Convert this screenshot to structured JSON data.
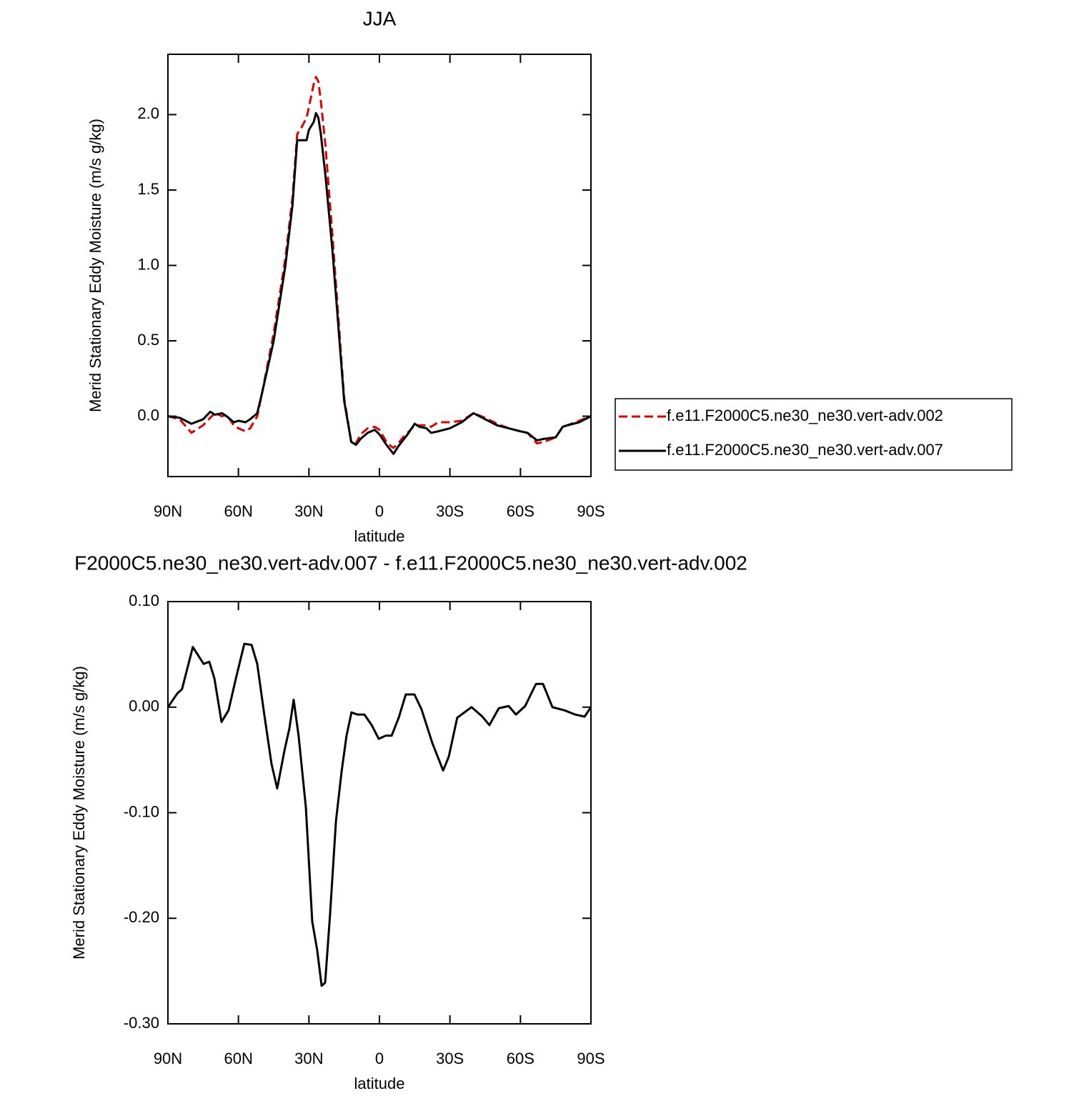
{
  "chart_data": [
    {
      "type": "line",
      "title": "JJA",
      "xlabel": "latitude",
      "ylabel": "Merid Stationary Eddy Moisture (m/s g/kg)",
      "x": [
        90,
        85,
        80,
        75,
        72,
        70,
        67,
        65,
        62,
        60,
        57,
        55,
        52,
        50,
        45,
        40,
        37,
        35,
        33,
        31,
        30,
        28,
        27,
        26,
        25,
        23,
        20,
        17,
        15,
        12,
        10,
        8,
        5,
        2,
        0,
        -3,
        -5,
        -6,
        -8,
        -10,
        -12,
        -15,
        -17,
        -20,
        -22,
        -25,
        -30,
        -35,
        -40,
        -45,
        -50,
        -55,
        -60,
        -63,
        -67,
        -70,
        -75,
        -78,
        -80,
        -85,
        -90
      ],
      "series": [
        {
          "name": "f.e11.F2000C5.ne30_ne30.vert-adv.002",
          "color": "#e00000",
          "dash": true,
          "values": [
            0,
            -0.02,
            -0.11,
            -0.06,
            -0.01,
            0.02,
            0,
            0.01,
            -0.06,
            -0.08,
            -0.1,
            -0.08,
            0,
            0.15,
            0.55,
            1.05,
            1.45,
            1.87,
            1.92,
            1.98,
            2.05,
            2.2,
            2.25,
            2.22,
            2.1,
            1.8,
            1.2,
            0.55,
            0.12,
            -0.17,
            -0.18,
            -0.12,
            -0.08,
            -0.07,
            -0.09,
            -0.17,
            -0.2,
            -0.21,
            -0.18,
            -0.14,
            -0.11,
            -0.06,
            -0.06,
            -0.06,
            -0.07,
            -0.04,
            -0.04,
            -0.03,
            0.02,
            -0.01,
            -0.05,
            -0.08,
            -0.1,
            -0.11,
            -0.18,
            -0.17,
            -0.14,
            -0.07,
            -0.06,
            -0.03,
            0
          ]
        },
        {
          "name": "f.e11.F2000C5.ne30_ne30.vert-adv.007",
          "color": "#000000",
          "dash": false,
          "values": [
            0,
            -0.01,
            -0.05,
            -0.02,
            0.03,
            0.01,
            0.02,
            0,
            -0.04,
            -0.03,
            -0.04,
            -0.02,
            0.02,
            0.15,
            0.5,
            1.0,
            1.4,
            1.83,
            1.83,
            1.83,
            1.9,
            1.95,
            2.01,
            1.98,
            1.88,
            1.6,
            1.1,
            0.5,
            0.1,
            -0.17,
            -0.19,
            -0.15,
            -0.11,
            -0.09,
            -0.12,
            -0.19,
            -0.23,
            -0.25,
            -0.2,
            -0.16,
            -0.12,
            -0.05,
            -0.07,
            -0.08,
            -0.11,
            -0.1,
            -0.08,
            -0.04,
            0.02,
            -0.02,
            -0.06,
            -0.08,
            -0.1,
            -0.11,
            -0.16,
            -0.15,
            -0.14,
            -0.07,
            -0.06,
            -0.04,
            0
          ]
        }
      ],
      "xlim": [
        90,
        -90
      ],
      "xticks": [
        {
          "value": 90,
          "label": "90N"
        },
        {
          "value": 60,
          "label": "60N"
        },
        {
          "value": 30,
          "label": "30N"
        },
        0,
        {
          "value": -30,
          "label": "30S"
        },
        {
          "value": -60,
          "label": "60S"
        },
        {
          "value": -90,
          "label": "90S"
        }
      ],
      "ylim": [
        -0.4,
        2.4
      ],
      "yticks": [
        {
          "value": 0,
          "label": "0.0"
        },
        0.5,
        {
          "value": 1,
          "label": "1.0"
        },
        1.5,
        {
          "value": 2,
          "label": "2.0"
        }
      ],
      "legend": "right"
    },
    {
      "type": "line",
      "title": "F2000C5.ne30_ne30.vert-adv.007 - f.e11.F2000C5.ne30_ne30.vert-adv.002",
      "xlabel": "latitude",
      "ylabel": "Merid Stationary Eddy Moisture (m/s g/kg)",
      "x": [
        90,
        86,
        84,
        79.4,
        74.8,
        72.4,
        70.2,
        67.2,
        64.2,
        61.1,
        57.5,
        54.4,
        52,
        49,
        45.9,
        43.5,
        40.4,
        38.3,
        36.5,
        34.4,
        31.3,
        28.6,
        26.5,
        24.6,
        23.1,
        21,
        18.5,
        16.1,
        14,
        11.9,
        9.4,
        6.4,
        3.3,
        0.3,
        -2.7,
        -5.2,
        -8.2,
        -11.2,
        -14.9,
        -17.9,
        -22.5,
        -27.1,
        -29.5,
        -33.1,
        -39.2,
        -43.8,
        -46.8,
        -50.8,
        -55,
        -58.1,
        -62,
        -66.6,
        -69.6,
        -73.6,
        -78.7,
        -83.3,
        -87.3,
        -90
      ],
      "series": [
        {
          "color": "#000000",
          "dash": false,
          "values": [
            0,
            0.013,
            0.017,
            0.057,
            0.041,
            0.043,
            0.027,
            -0.014,
            -0.003,
            0.027,
            0.06,
            0.059,
            0.041,
            -0.007,
            -0.054,
            -0.077,
            -0.041,
            -0.02,
            0.007,
            -0.027,
            -0.095,
            -0.203,
            -0.23,
            -0.264,
            -0.261,
            -0.196,
            -0.108,
            -0.061,
            -0.027,
            -0.005,
            -0.007,
            -0.007,
            -0.017,
            -0.03,
            -0.027,
            -0.027,
            -0.01,
            0.012,
            0.012,
            -0.002,
            -0.034,
            -0.06,
            -0.047,
            -0.01,
            0,
            -0.009,
            -0.017,
            -0.001,
            0.001,
            -0.007,
            0.001,
            0.022,
            0.022,
            0,
            -0.003,
            -0.007,
            -0.009,
            0
          ]
        }
      ],
      "xlim": [
        90,
        -90
      ],
      "xticks": [
        {
          "value": 90,
          "label": "90N"
        },
        {
          "value": 60,
          "label": "60N"
        },
        {
          "value": 30,
          "label": "30N"
        },
        0,
        {
          "value": -30,
          "label": "30S"
        },
        {
          "value": -60,
          "label": "60S"
        },
        {
          "value": -90,
          "label": "90S"
        }
      ],
      "ylim": [
        -0.3,
        0.1
      ],
      "yticks": [
        {
          "value": -0.3,
          "label": "-0.30"
        },
        {
          "value": -0.2,
          "label": "-0.20"
        },
        {
          "value": -0.1,
          "label": "-0.10"
        },
        {
          "value": 0,
          "label": "0.00"
        },
        {
          "value": 0.1,
          "label": "0.10"
        }
      ]
    }
  ]
}
